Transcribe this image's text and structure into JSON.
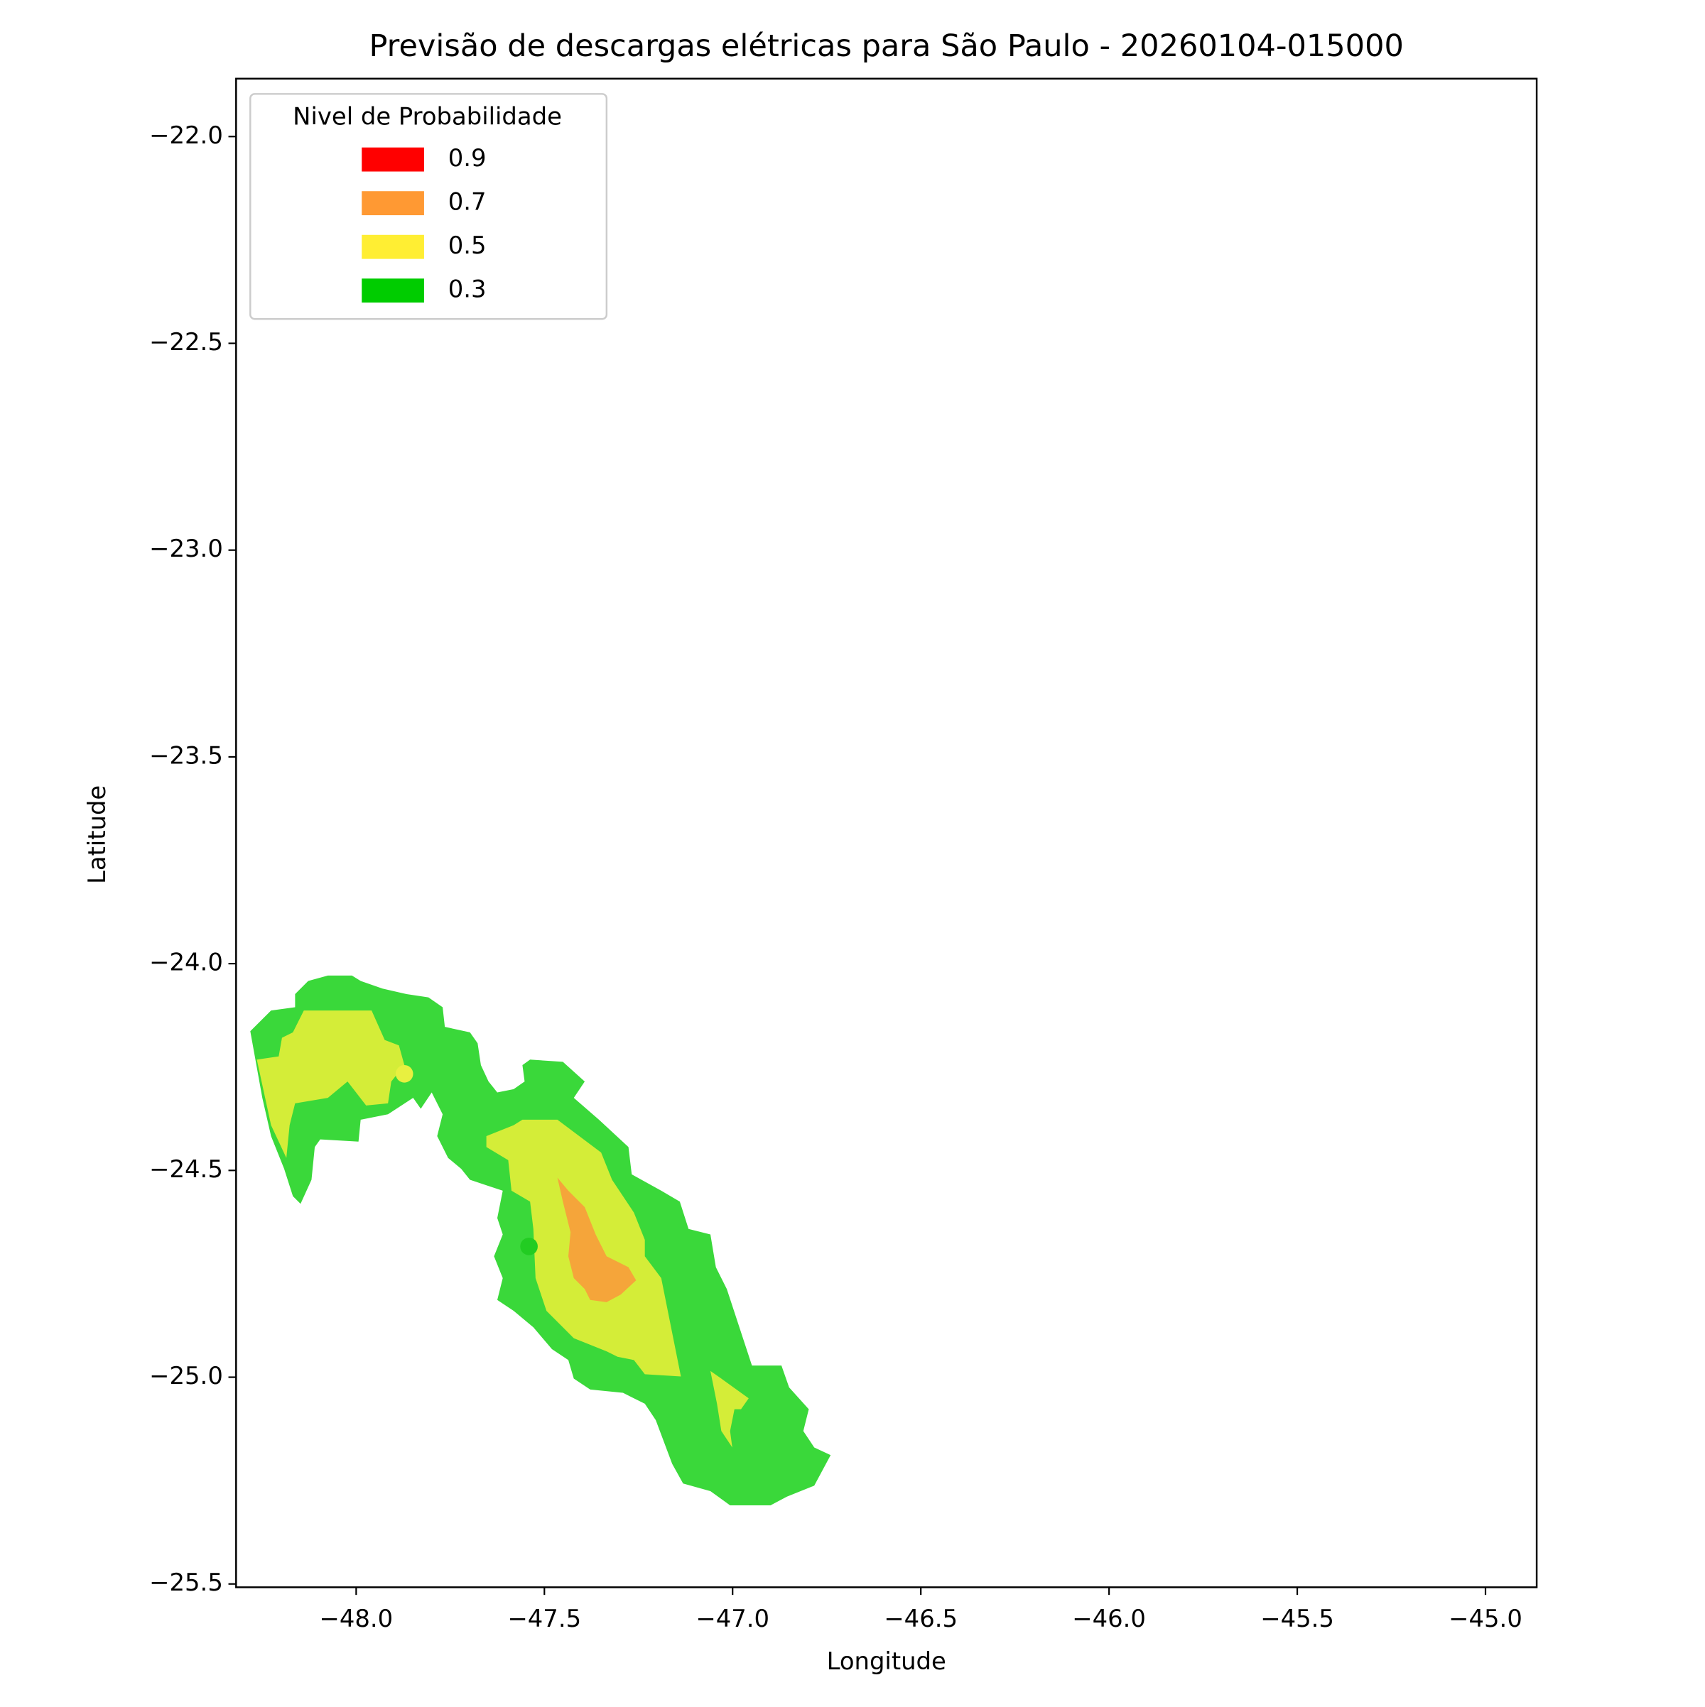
{
  "chart_data": {
    "type": "contour",
    "title": "Previsão de descargas elétricas para São Paulo - 20260104-015000",
    "x_label": "Longitude",
    "y_label": "Latitude",
    "xlim": [
      -48.319,
      -44.864
    ],
    "ylim": [
      -25.508,
      -21.86
    ],
    "xticks": [
      {
        "value": -48,
        "label": "−48.0"
      },
      {
        "value": -47.5,
        "label": "−47.5"
      },
      {
        "value": -47,
        "label": "−47.0"
      },
      {
        "value": -46.5,
        "label": "−46.5"
      },
      {
        "value": -46,
        "label": "−46.0"
      },
      {
        "value": -45.5,
        "label": "−45.5"
      },
      {
        "value": -45,
        "label": "−45.0"
      }
    ],
    "yticks": [
      {
        "value": -22,
        "label": "−22.0"
      },
      {
        "value": -22.5,
        "label": "−22.5"
      },
      {
        "value": -23,
        "label": "−23.0"
      },
      {
        "value": -23.5,
        "label": "−23.5"
      },
      {
        "value": -24,
        "label": "−24.0"
      },
      {
        "value": -24.5,
        "label": "−24.5"
      },
      {
        "value": -25,
        "label": "−25.0"
      },
      {
        "value": -25.5,
        "label": "−25.5"
      }
    ],
    "legend": {
      "title": "Nivel de Probabilidade",
      "position": "upper left",
      "levels": [
        {
          "value": 0.9,
          "color": "#ff0000"
        },
        {
          "value": 0.7,
          "color": "#ff9933"
        },
        {
          "value": 0.5,
          "color": "#ffee33"
        },
        {
          "value": 0.3,
          "color": "#00cc00"
        }
      ]
    }
  }
}
